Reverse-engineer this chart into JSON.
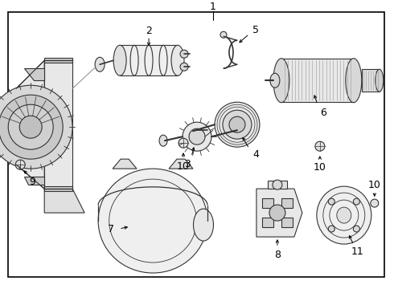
{
  "bg_color": "#ffffff",
  "border_color": "#000000",
  "line_color": "#333333",
  "text_color": "#000000",
  "label_fontsize": 8,
  "fig_width": 4.9,
  "fig_height": 3.6,
  "dpi": 100
}
